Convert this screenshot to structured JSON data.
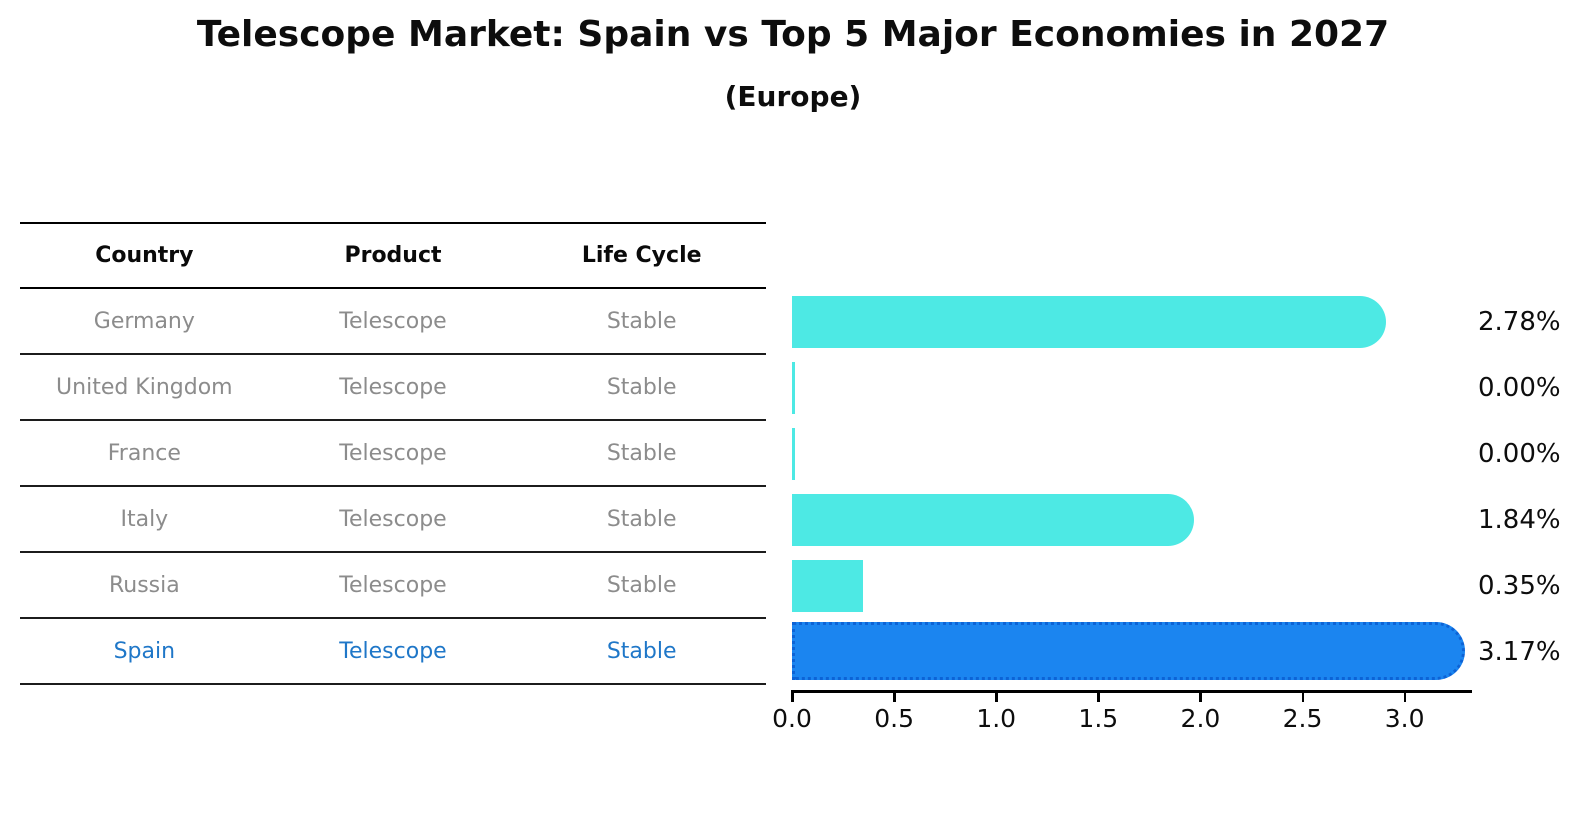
{
  "title": "Telescope Market: Spain vs Top 5 Major Economies in 2027",
  "subtitle": "(Europe)",
  "table": {
    "headers": [
      "Country",
      "Product",
      "Life Cycle"
    ],
    "rows": [
      {
        "country": "Germany",
        "product": "Telescope",
        "life_cycle": "Stable",
        "highlight": false
      },
      {
        "country": "United Kingdom",
        "product": "Telescope",
        "life_cycle": "Stable",
        "highlight": false
      },
      {
        "country": "France",
        "product": "Telescope",
        "life_cycle": "Stable",
        "highlight": false
      },
      {
        "country": "Italy",
        "product": "Telescope",
        "life_cycle": "Stable",
        "highlight": false
      },
      {
        "country": "Russia",
        "product": "Telescope",
        "life_cycle": "Stable",
        "highlight": false
      },
      {
        "country": "Spain",
        "product": "Telescope",
        "life_cycle": "Stable",
        "highlight": true
      }
    ]
  },
  "chart_data": {
    "type": "bar",
    "orientation": "horizontal",
    "title": "Telescope Market: Spain vs Top 5 Major Economies in 2027",
    "subtitle": "(Europe)",
    "categories": [
      "Germany",
      "United Kingdom",
      "France",
      "Italy",
      "Russia",
      "Spain"
    ],
    "values": [
      2.78,
      0.0,
      0.0,
      1.84,
      0.35,
      3.17
    ],
    "value_labels": [
      "2.78%",
      "0.00%",
      "0.00%",
      "1.84%",
      "0.35%",
      "3.17%"
    ],
    "highlight_index": 5,
    "xlabel": "",
    "ylabel": "",
    "xlim": [
      0,
      3.32
    ],
    "xticks": [
      0.0,
      0.5,
      1.0,
      1.5,
      2.0,
      2.5,
      3.0
    ],
    "xtick_labels": [
      "0.0",
      "0.5",
      "1.0",
      "1.5",
      "2.0",
      "2.5",
      "3.0"
    ],
    "grid": false,
    "legend": "none",
    "colors": {
      "bar": "#4de9e4",
      "highlight_bar": "#1b85f0",
      "highlight_border": "#0c63d6",
      "row_text": "#8c8c8c",
      "highlight_text": "#1f77c8",
      "axis": "#000000",
      "value_text": "#0d0d0d"
    }
  }
}
